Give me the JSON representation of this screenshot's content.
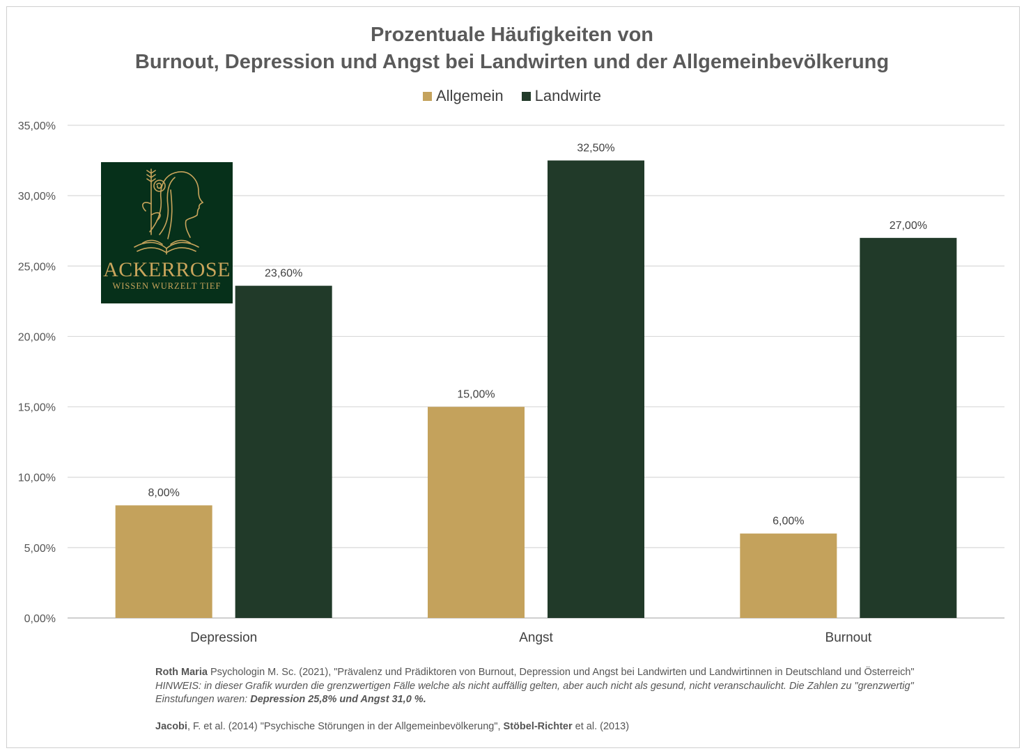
{
  "chart_data": {
    "type": "bar",
    "title_line1": "Prozentuale Häufigkeiten von",
    "title_line2": "Burnout, Depression und Angst bei Landwirten und der Allgemeinbevölkerung",
    "categories": [
      "Depression",
      "Angst",
      "Burnout"
    ],
    "series": [
      {
        "name": "Allgemein",
        "values": [
          8.0,
          15.0,
          6.0
        ],
        "labels": [
          "8,00%",
          "15,00%",
          "6,00%"
        ],
        "color": "#c4a25c"
      },
      {
        "name": "Landwirte",
        "values": [
          23.6,
          32.5,
          27.0
        ],
        "labels": [
          "23,60%",
          "32,50%",
          "27,00%"
        ],
        "color": "#213a29"
      }
    ],
    "ylim": [
      0,
      35
    ],
    "yticks": [
      "0,00%",
      "5,00%",
      "10,00%",
      "15,00%",
      "20,00%",
      "25,00%",
      "30,00%",
      "35,00%"
    ],
    "grid": true,
    "legend_position": "top-center"
  },
  "logo": {
    "name": "ACKERROSE",
    "tagline": "WISSEN WURZELT TIEF",
    "background": "#06301a",
    "accent": "#c9a55c"
  },
  "source": {
    "line1_author": "Roth Maria",
    "line1_text": " Psychologin M. Sc. (2021), \"Prävalenz und Prädiktoren von Burnout, Depression und Angst bei Landwirten und Landwirtinnen in Deutschland und Österreich\"",
    "note_label": "HINWEIS",
    "note_text": ": in dieser Grafik wurden die grenzwertigen Fälle welche als nicht auffällig gelten, aber auch nicht als gesund, nicht veranschaulicht. Die Zahlen zu \"grenzwertig\" Einstufungen waren: ",
    "note_bold": "Depression 25,8% und Angst 31,0 %.",
    "line3_author": "Jacobi",
    "line3_text": ", F. et al. (2014) \"Psychische Störungen in der Allgemeinbevölkerung\", ",
    "line3_author2": "Stöbel-Richter",
    "line3_text2": " et al. (2013)"
  }
}
